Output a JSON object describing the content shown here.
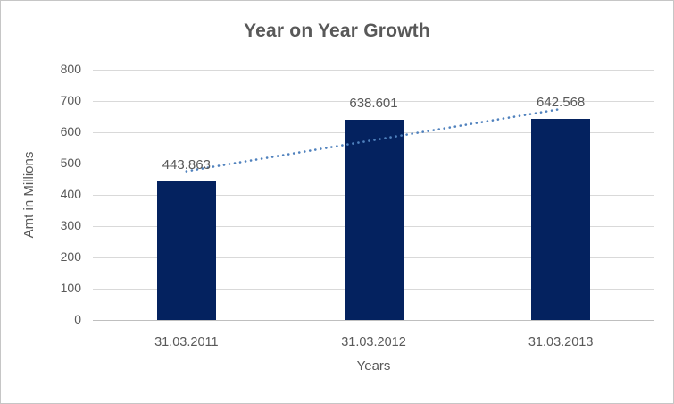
{
  "chart_data": {
    "type": "bar",
    "title": "Year on Year Growth",
    "xlabel": "Years",
    "ylabel": "Amt in Millions",
    "categories": [
      "31.03.2011",
      "31.03.2012",
      "31.03.2013"
    ],
    "values": [
      443.863,
      638.601,
      642.568
    ],
    "data_labels": [
      "443.863",
      "638.601",
      "642.568"
    ],
    "ylim": [
      0,
      800
    ],
    "yticks": [
      0,
      100,
      200,
      300,
      400,
      500,
      600,
      700,
      800
    ],
    "grid": true,
    "legend": "none",
    "bar_color": "#04225f",
    "trendline": {
      "type": "linear",
      "style": "dotted",
      "color": "#4f81bd"
    },
    "colors": {
      "text": "#595959",
      "gridline": "#d9d9d9",
      "axis_line": "#bfbfbf",
      "background": "#ffffff",
      "border": "#c6c6c6"
    }
  }
}
